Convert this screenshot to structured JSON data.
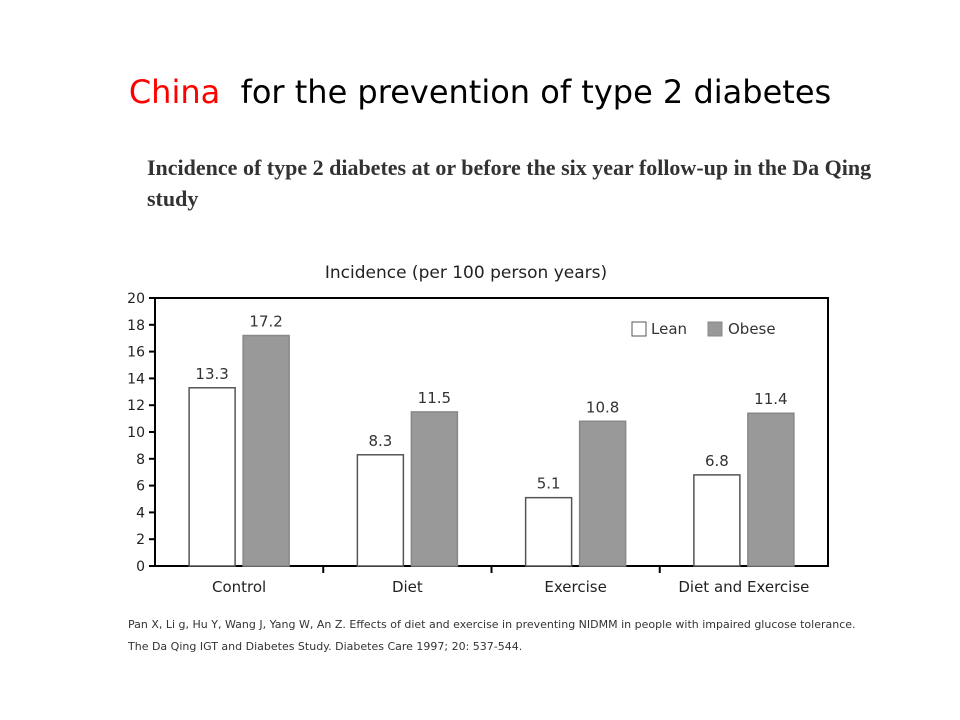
{
  "slide": {
    "title_highlight": "China",
    "title_rest": "for the prevention of type 2 diabetes",
    "subtitle": "Incidence of type 2 diabetes at or before the six year follow-up in the Da Qing study",
    "citation": "Pan X, Li g, Hu Y, Wang J, Yang W, An Z. Effects of diet and exercise in preventing NIDMM in people with impaired glucose tolerance. The Da Qing IGT and Diabetes Study. Diabetes Care 1997; 20: 537-544."
  },
  "colors": {
    "title_highlight": "#ff0000",
    "lean_fill": "#ffffff",
    "obese_fill": "#999999",
    "axis": "#000000"
  },
  "chart_data": {
    "type": "bar",
    "title": "Incidence (per 100 person years)",
    "categories": [
      "Control",
      "Diet",
      "Exercise",
      "Diet and Exercise"
    ],
    "series": [
      {
        "name": "Lean",
        "values": [
          13.3,
          8.3,
          5.1,
          6.8
        ]
      },
      {
        "name": "Obese",
        "values": [
          17.2,
          11.5,
          10.8,
          11.4
        ]
      }
    ],
    "data_labels": [
      [
        "13.3",
        "8.3",
        "5.1",
        "6.8"
      ],
      [
        "17.2",
        "11.5",
        "10.8",
        "11.4"
      ]
    ],
    "yticks": [
      "0",
      "2",
      "4",
      "6",
      "8",
      "10",
      "12",
      "14",
      "16",
      "18",
      "20"
    ],
    "ylim": [
      0,
      20
    ],
    "legend_position": "top-right",
    "grid": false
  }
}
